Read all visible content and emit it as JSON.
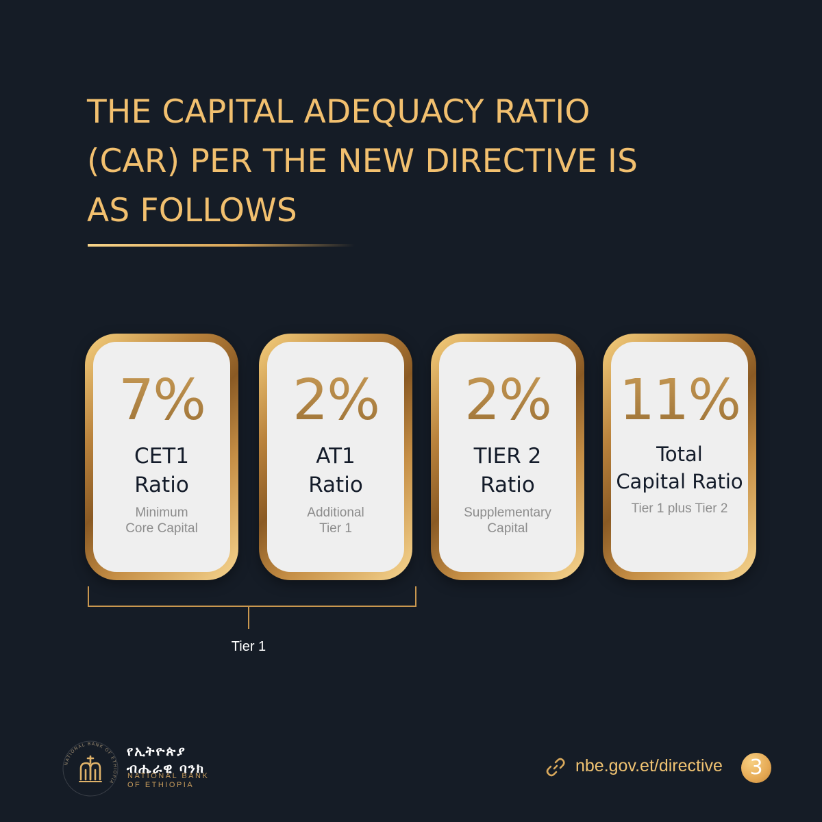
{
  "title_lines": [
    "THE CAPITAL ADEQUACY RATIO",
    "(CAR) PER THE NEW DIRECTIVE IS",
    "AS FOLLOWS"
  ],
  "cards": [
    {
      "percent": "7%",
      "name_lines": [
        "CET1",
        "Ratio"
      ],
      "sub_lines": [
        "Minimum",
        "Core Capital"
      ]
    },
    {
      "percent": "2%",
      "name_lines": [
        "AT1",
        "Ratio"
      ],
      "sub_lines": [
        "Additional",
        "Tier 1"
      ]
    },
    {
      "percent": "2%",
      "name_lines": [
        "TIER 2",
        "Ratio"
      ],
      "sub_lines": [
        "Supplementary",
        "Capital"
      ]
    },
    {
      "percent": "11%",
      "name_lines": [
        "Total",
        "Capital Ratio"
      ],
      "sub_lines": [
        "Tier 1 plus Tier 2"
      ]
    }
  ],
  "bracket_label": "Tier 1",
  "brand": {
    "amharic_lines": [
      "የኢትዮጵያ",
      "ብሔራዊ ባንክ"
    ],
    "english_lines": [
      "NATIONAL BANK",
      "OF ETHIOPIA"
    ],
    "logo_ring_text": "NATIONAL BANK OF ETHIOPIA",
    "logo_icon": "bank-emblem-icon"
  },
  "link": {
    "icon": "link-icon",
    "text": "nbe.gov.et/directive"
  },
  "page_number": "3",
  "colors": {
    "background": "#151c26",
    "accent_gold": "#f2c06f",
    "card_face": "#efefef",
    "card_text": "#141c2a",
    "card_subtext": "#8c8c8c"
  }
}
